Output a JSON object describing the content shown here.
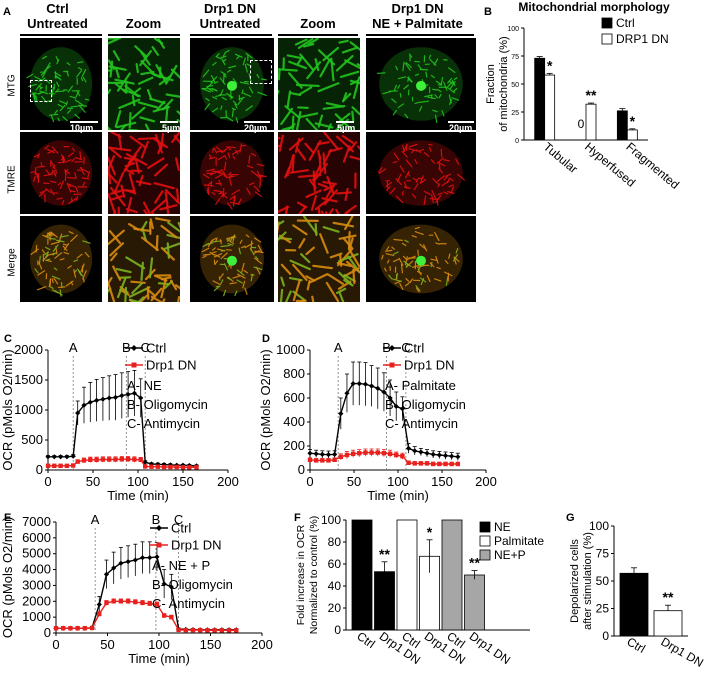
{
  "panel_a": {
    "label": "A",
    "columns": [
      {
        "line1": "Ctrl",
        "line2": "Untreated"
      },
      {
        "line1": "",
        "line2": "Zoom"
      },
      {
        "line1": "Drp1 DN",
        "line2": "Untreated"
      },
      {
        "line1": "",
        "line2": "Zoom"
      },
      {
        "line1": "Drp1 DN",
        "line2": "NE + Palmitate"
      }
    ],
    "rows": [
      "MTG",
      "TMRE",
      "Merge"
    ],
    "scalebars": [
      "10µm",
      "5µm",
      "20µm",
      "5µm",
      "20µm"
    ]
  },
  "panel_labels": {
    "b": "B",
    "c": "C",
    "d": "D",
    "e": "E",
    "f": "F",
    "g": "G"
  },
  "colors": {
    "ctrl": "#000000",
    "drp1": "#e8201e",
    "mtg": "#22c21e",
    "tmre": "#e01010",
    "merge": "#d88a10"
  },
  "chart_data": [
    {
      "id": "B",
      "type": "bar",
      "title": "Mitochondrial morphology",
      "ylabel": "Fraction of mitochondria (%)",
      "ylim": [
        0,
        100
      ],
      "yticks": [
        0,
        25,
        50,
        75,
        100
      ],
      "categories": [
        "Tubular",
        "Hyperfused",
        "Fragmented"
      ],
      "series": [
        {
          "name": "Ctrl",
          "values": [
            73,
            0,
            26
          ],
          "errors": [
            1.5,
            0,
            2
          ]
        },
        {
          "name": "DRP1 DN",
          "values": [
            58,
            32,
            9
          ],
          "errors": [
            1.5,
            1,
            1
          ]
        }
      ],
      "bar_labels": [
        "",
        "0",
        ""
      ],
      "significance": [
        "*",
        "**",
        "*"
      ],
      "legend": "top-right"
    },
    {
      "id": "C",
      "type": "line",
      "ylabel": "OCR (pMols O2/min)",
      "xlabel": "Time (min)",
      "xlim": [
        0,
        200
      ],
      "ylim": [
        0,
        2000
      ],
      "xticks": [
        0,
        50,
        100,
        150,
        200
      ],
      "yticks": [
        0,
        500,
        1000,
        1500,
        2000
      ],
      "markers": [
        {
          "label": "A",
          "x": 28
        },
        {
          "label": "B",
          "x": 87
        },
        {
          "label": "C",
          "x": 108
        }
      ],
      "annotations": [
        "A- NE",
        "B- Oligomycin",
        "C- Antimycin"
      ],
      "x": [
        0,
        7,
        14,
        21,
        28,
        33,
        40,
        47,
        54,
        61,
        68,
        75,
        82,
        89,
        96,
        103,
        108,
        115,
        122,
        129,
        136,
        143,
        150,
        157,
        165
      ],
      "series": [
        {
          "name": "Ctrl",
          "values": [
            220,
            220,
            220,
            220,
            230,
            950,
            1080,
            1130,
            1160,
            1180,
            1200,
            1210,
            1240,
            1260,
            1280,
            1200,
            130,
            100,
            95,
            90,
            85,
            80,
            80,
            75,
            70
          ],
          "errors": [
            20,
            20,
            20,
            20,
            30,
            200,
            300,
            330,
            350,
            360,
            370,
            380,
            380,
            380,
            380,
            320,
            25,
            20,
            20,
            20,
            20,
            15,
            15,
            15,
            15
          ]
        },
        {
          "name": "Drp1 DN",
          "values": [
            70,
            70,
            70,
            70,
            75,
            140,
            160,
            170,
            170,
            175,
            175,
            175,
            180,
            180,
            175,
            170,
            60,
            55,
            55,
            50,
            50,
            50,
            45,
            45,
            45
          ],
          "errors": [
            10,
            10,
            10,
            10,
            10,
            30,
            40,
            45,
            45,
            45,
            45,
            45,
            45,
            45,
            45,
            40,
            10,
            10,
            10,
            10,
            10,
            10,
            10,
            10,
            10
          ]
        }
      ]
    },
    {
      "id": "D",
      "type": "line",
      "ylabel": "OCR (pMols O2/min)",
      "xlabel": "Time (min)",
      "xlim": [
        0,
        200
      ],
      "ylim": [
        0,
        1000
      ],
      "xticks": [
        0,
        50,
        100,
        150,
        200
      ],
      "yticks": [
        0,
        200,
        400,
        600,
        800,
        1000
      ],
      "markers": [
        {
          "label": "A",
          "x": 32
        },
        {
          "label": "B",
          "x": 87
        },
        {
          "label": "C",
          "x": 109
        }
      ],
      "annotations": [
        "A- Palmitate",
        "B- Oligomycin",
        "C- Antimycin"
      ],
      "x": [
        0,
        7,
        14,
        21,
        28,
        35,
        42,
        49,
        56,
        63,
        70,
        77,
        84,
        91,
        98,
        105,
        112,
        119,
        126,
        133,
        140,
        147,
        154,
        161,
        168
      ],
      "series": [
        {
          "name": "Ctrl",
          "values": [
            140,
            135,
            130,
            128,
            130,
            470,
            640,
            720,
            720,
            715,
            700,
            680,
            650,
            600,
            530,
            510,
            180,
            160,
            150,
            140,
            130,
            125,
            120,
            115,
            110
          ],
          "errors": [
            30,
            30,
            30,
            30,
            30,
            130,
            160,
            180,
            180,
            180,
            170,
            170,
            160,
            150,
            120,
            100,
            40,
            35,
            30,
            30,
            30,
            30,
            30,
            30,
            30
          ]
        },
        {
          "name": "Drp1 DN",
          "values": [
            85,
            80,
            80,
            80,
            85,
            110,
            125,
            135,
            140,
            145,
            145,
            145,
            140,
            135,
            125,
            115,
            60,
            55,
            55,
            55,
            50,
            50,
            50,
            50,
            50
          ],
          "errors": [
            15,
            15,
            15,
            15,
            15,
            25,
            30,
            30,
            30,
            30,
            30,
            30,
            30,
            30,
            25,
            25,
            15,
            15,
            15,
            15,
            15,
            15,
            15,
            15,
            15
          ]
        }
      ]
    },
    {
      "id": "E",
      "type": "line",
      "ylabel": "OCR (pMols O2/min)",
      "xlabel": "Time (min)",
      "xlim": [
        0,
        200
      ],
      "ylim": [
        0,
        7000
      ],
      "xticks": [
        0,
        50,
        100,
        150,
        200
      ],
      "yticks": [
        0,
        1000,
        2000,
        3000,
        4000,
        5000,
        6000,
        7000
      ],
      "markers": [
        {
          "label": "A",
          "x": 38
        },
        {
          "label": "B",
          "x": 97
        },
        {
          "label": "C",
          "x": 119
        }
      ],
      "annotations": [
        "A- NE + P",
        "B- Oligomycin",
        "C- Antimycin"
      ],
      "x": [
        0,
        7,
        14,
        21,
        28,
        35,
        42,
        49,
        56,
        63,
        70,
        77,
        84,
        91,
        98,
        105,
        112,
        119,
        126,
        133,
        140,
        147,
        154,
        161,
        168,
        175
      ],
      "series": [
        {
          "name": "Ctrl",
          "values": [
            300,
            300,
            300,
            300,
            300,
            320,
            1800,
            3700,
            4100,
            4400,
            4500,
            4600,
            4750,
            4750,
            4800,
            3100,
            2900,
            250,
            220,
            210,
            200,
            200,
            200,
            200,
            200,
            200
          ],
          "errors": [
            40,
            40,
            40,
            40,
            40,
            60,
            500,
            900,
            1000,
            1000,
            1000,
            1000,
            1000,
            1000,
            900,
            900,
            800,
            50,
            40,
            40,
            40,
            40,
            40,
            40,
            40,
            40
          ]
        },
        {
          "name": "Drp1 DN",
          "values": [
            300,
            300,
            300,
            300,
            300,
            320,
            1200,
            1900,
            2000,
            2000,
            2000,
            1950,
            1900,
            1850,
            1800,
            1100,
            1000,
            200,
            180,
            180,
            180,
            170,
            170,
            170,
            170,
            170
          ],
          "errors": [
            30,
            30,
            30,
            30,
            30,
            40,
            150,
            150,
            150,
            150,
            150,
            150,
            150,
            150,
            150,
            120,
            120,
            30,
            30,
            30,
            30,
            30,
            30,
            30,
            30,
            30
          ]
        }
      ]
    },
    {
      "id": "F",
      "type": "bar",
      "ylabel": "Fold increase in OCR Normalized to control (%)",
      "ylim": [
        0,
        100
      ],
      "yticks": [
        0,
        20,
        40,
        60,
        80,
        100
      ],
      "categories": [
        "Ctrl",
        "Drp1 DN",
        "Ctrl",
        "Drp1 DN",
        "Ctrl",
        "Drp1 DN"
      ],
      "groups": [
        "NE",
        "NE",
        "Palmitate",
        "Palmitate",
        "NE+P",
        "NE+P"
      ],
      "values": [
        100,
        53,
        100,
        67,
        100,
        50
      ],
      "errors": [
        0,
        9,
        0,
        15,
        0,
        4
      ],
      "significance": [
        "",
        "**",
        "",
        "*",
        "",
        "**"
      ],
      "legend_entries": [
        "NE",
        "Palmitate",
        "NE+P"
      ],
      "legend": "top-right"
    },
    {
      "id": "G",
      "type": "bar",
      "ylabel": "Depolarized cells after stimulation (%)",
      "ylim": [
        0,
        100
      ],
      "yticks": [
        0,
        25,
        50,
        75,
        100
      ],
      "categories": [
        "Ctrl",
        "Drp1 DN"
      ],
      "values": [
        57,
        23
      ],
      "errors": [
        5,
        5
      ],
      "significance": [
        "",
        "**"
      ]
    }
  ]
}
